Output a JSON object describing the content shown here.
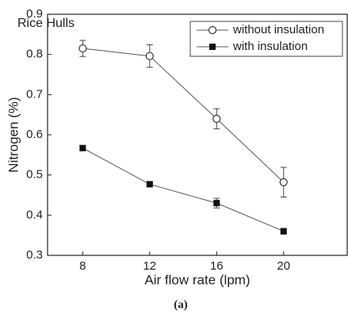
{
  "chart_data": {
    "type": "line",
    "title": "Rice Hulls",
    "x_label": "Air flow rate (lpm)",
    "y_label": "Nitrogen (%)",
    "caption": "(a)",
    "x": [
      8,
      12,
      16,
      20
    ],
    "series": [
      {
        "name": "without insulation",
        "color": "#555555",
        "marker": "open-circle",
        "values": [
          0.815,
          0.796,
          0.64,
          0.482
        ],
        "errors": [
          0.02,
          0.028,
          0.025,
          0.037
        ]
      },
      {
        "name": "with insulation",
        "color": "#555555",
        "marker": "filled-square",
        "values": [
          0.567,
          0.477,
          0.43,
          0.36
        ],
        "errors": [
          0.005,
          0.005,
          0.012,
          0.007
        ]
      }
    ],
    "xlim": [
      5.9,
      23.8
    ],
    "xticks": [
      8,
      12,
      16,
      20
    ],
    "ylim": [
      0.3,
      0.9
    ],
    "yticks": [
      0.3,
      0.4,
      0.5,
      0.6,
      0.7,
      0.8,
      0.9
    ],
    "legend": "upper right"
  }
}
